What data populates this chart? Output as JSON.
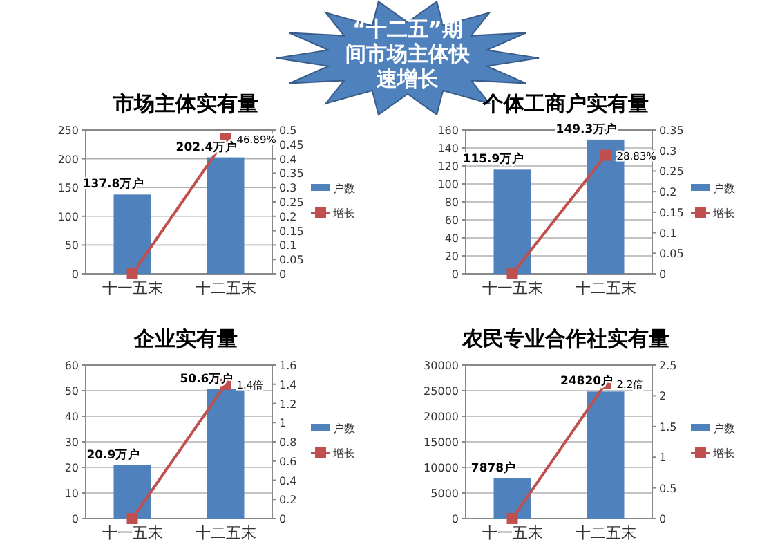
{
  "chart_data": [
    {
      "type": "other",
      "title": "“十二五”期间市场主体快速增长"
    },
    {
      "type": "bar",
      "title": "市场主体实有量",
      "categories": [
        "十一五末",
        "十二五末"
      ],
      "series": [
        {
          "name": "户数",
          "color": "#4f81bd",
          "values": [
            137.8,
            202.4
          ],
          "value_labels": [
            "137.8万户",
            "202.4万户"
          ]
        },
        {
          "name": "增长",
          "type": "line",
          "axis": "y2",
          "color": "#c0504d",
          "marker": "square",
          "values": [
            0,
            0.4689
          ],
          "value_labels": [
            null,
            "46.89%"
          ]
        }
      ],
      "ylim": [
        0,
        250
      ],
      "yticks": [
        0,
        50,
        100,
        150,
        200,
        250
      ],
      "y2lim": [
        0,
        0.5
      ],
      "y2ticks": [
        0,
        0.05,
        0.1,
        0.15,
        0.2,
        0.25,
        0.3,
        0.35,
        0.4,
        0.45,
        0.5
      ],
      "grid": "y",
      "legend": "right"
    },
    {
      "type": "bar",
      "title": "个体工商户实有量",
      "categories": [
        "十一五末",
        "十二五末"
      ],
      "series": [
        {
          "name": "户数",
          "color": "#4f81bd",
          "values": [
            115.9,
            149.3
          ],
          "value_labels": [
            "115.9万户",
            "149.3万户"
          ]
        },
        {
          "name": "增长",
          "type": "line",
          "axis": "y2",
          "color": "#c0504d",
          "marker": "square",
          "values": [
            0,
            0.2883
          ],
          "value_labels": [
            null,
            "28.83%"
          ]
        }
      ],
      "ylim": [
        0,
        160
      ],
      "yticks": [
        0,
        20,
        40,
        60,
        80,
        100,
        120,
        140,
        160
      ],
      "y2lim": [
        0,
        0.35
      ],
      "y2ticks": [
        0,
        0.05,
        0.1,
        0.15,
        0.2,
        0.25,
        0.3,
        0.35
      ],
      "grid": "y",
      "legend": "right"
    },
    {
      "type": "bar",
      "title": "企业实有量",
      "categories": [
        "十一五末",
        "十二五末"
      ],
      "series": [
        {
          "name": "户数",
          "color": "#4f81bd",
          "values": [
            20.9,
            50.6
          ],
          "value_labels": [
            "20.9万户",
            "50.6万户"
          ]
        },
        {
          "name": "增长",
          "type": "line",
          "axis": "y2",
          "color": "#c0504d",
          "marker": "square",
          "values": [
            0,
            1.4
          ],
          "value_labels": [
            null,
            "1.4倍"
          ]
        }
      ],
      "ylim": [
        0,
        60
      ],
      "yticks": [
        0,
        10,
        20,
        30,
        40,
        50,
        60
      ],
      "y2lim": [
        0,
        1.6
      ],
      "y2ticks": [
        0,
        0.2,
        0.4,
        0.6,
        0.8,
        1,
        1.2,
        1.4,
        1.6
      ],
      "grid": "y",
      "legend": "right"
    },
    {
      "type": "bar",
      "title": "农民专业合作社实有量",
      "categories": [
        "十一五末",
        "十二五末"
      ],
      "series": [
        {
          "name": "户数",
          "color": "#4f81bd",
          "values": [
            7878,
            24820
          ],
          "value_labels": [
            "7878户",
            "24820户"
          ]
        },
        {
          "name": "增长",
          "type": "line",
          "axis": "y2",
          "color": "#c0504d",
          "marker": "square",
          "values": [
            0,
            2.2
          ],
          "value_labels": [
            null,
            "2.2倍"
          ]
        }
      ],
      "ylim": [
        0,
        30000
      ],
      "yticks": [
        0,
        5000,
        10000,
        15000,
        20000,
        25000,
        30000
      ],
      "y2lim": [
        0,
        2.5
      ],
      "y2ticks": [
        0,
        0.5,
        1,
        1.5,
        2,
        2.5
      ],
      "grid": "y",
      "legend": "right"
    }
  ]
}
